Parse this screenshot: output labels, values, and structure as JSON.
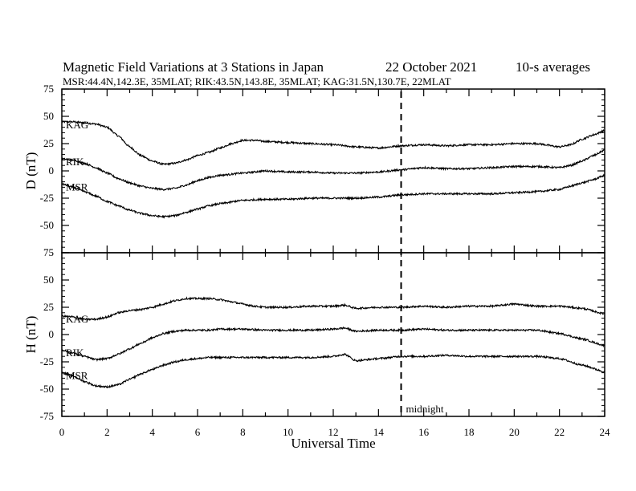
{
  "header": {
    "title": "Magnetic Field Variations at 3 Stations in Japan",
    "date": "22 October 2021",
    "averaging": "10-s averages",
    "stations_line": "MSR:44.4N,142.3E, 35MLAT;  RIK:43.5N,143.8E, 35MLAT;  KAG:31.5N,130.7E, 22MLAT"
  },
  "x_axis": {
    "label": "Universal Time",
    "range": [
      0,
      24
    ],
    "ticks": [
      "0",
      "2",
      "4",
      "6",
      "8",
      "10",
      "12",
      "14",
      "16",
      "18",
      "20",
      "22",
      "24"
    ]
  },
  "midnight_marker": {
    "x": 15,
    "label": "midnight"
  },
  "chart_data": [
    {
      "type": "line",
      "ylabel": "D (nT)",
      "ylim": [
        -75,
        75
      ],
      "yticks": [
        "75",
        "50",
        "25",
        "0",
        "-25",
        "-50",
        "-75"
      ],
      "grid": false,
      "series": [
        {
          "name": "KAG",
          "x": [
            0,
            0.5,
            1,
            1.5,
            2,
            2.5,
            3,
            3.5,
            4,
            4.5,
            5,
            5.5,
            6,
            6.5,
            7,
            7.5,
            8,
            8.5,
            9,
            10,
            11,
            12,
            13,
            14,
            15,
            16,
            17,
            18,
            19,
            20,
            21,
            22,
            22.5,
            23,
            23.5,
            24
          ],
          "y": [
            45,
            45,
            44,
            43,
            40,
            32,
            22,
            14,
            9,
            6,
            7,
            10,
            14,
            17,
            21,
            25,
            28,
            28,
            27,
            26,
            25,
            24,
            22,
            21,
            23,
            24,
            23,
            24,
            24,
            25,
            25,
            22,
            24,
            29,
            33,
            37
          ]
        },
        {
          "name": "RIK",
          "x": [
            0,
            0.5,
            1,
            1.5,
            2,
            2.5,
            3,
            3.5,
            4,
            4.5,
            5,
            5.5,
            6,
            6.5,
            7,
            8,
            9,
            10,
            11,
            12,
            13,
            14,
            15,
            16,
            17,
            18,
            19,
            20,
            21,
            22,
            22.5,
            23,
            23.5,
            24
          ],
          "y": [
            11,
            10,
            7,
            3,
            -2,
            -7,
            -11,
            -14,
            -16,
            -17,
            -16,
            -13,
            -9,
            -6,
            -4,
            -2,
            0,
            -1,
            -1,
            -2,
            -2,
            -1,
            1,
            3,
            2,
            2,
            3,
            4,
            4,
            3,
            5,
            9,
            14,
            19
          ]
        },
        {
          "name": "MSR",
          "x": [
            0,
            0.5,
            1,
            1.5,
            2,
            2.5,
            3,
            3.5,
            4,
            4.5,
            5,
            5.5,
            6,
            6.5,
            7,
            8,
            9,
            10,
            11,
            12,
            13,
            14,
            15,
            16,
            17,
            18,
            19,
            20,
            21,
            22,
            22.5,
            23,
            23.5,
            24
          ],
          "y": [
            -12,
            -15,
            -19,
            -23,
            -28,
            -32,
            -36,
            -39,
            -41,
            -42,
            -41,
            -38,
            -35,
            -32,
            -30,
            -27,
            -26,
            -26,
            -25,
            -25,
            -25,
            -24,
            -22,
            -21,
            -21,
            -21,
            -21,
            -20,
            -19,
            -17,
            -14,
            -11,
            -8,
            -4
          ]
        }
      ]
    },
    {
      "type": "line",
      "ylabel": "H (nT)",
      "ylim": [
        -75,
        75
      ],
      "yticks": [
        "75",
        "50",
        "25",
        "0",
        "-25",
        "-50",
        "-75"
      ],
      "grid": false,
      "series": [
        {
          "name": "KAG",
          "x": [
            0,
            0.5,
            1,
            1.5,
            2,
            2.5,
            3,
            3.5,
            4,
            4.5,
            5,
            5.5,
            6,
            6.5,
            7,
            7.5,
            8,
            8.5,
            9,
            10,
            11,
            12,
            12.5,
            13,
            14,
            15,
            16,
            17,
            18,
            19,
            20,
            21,
            22,
            23,
            24
          ],
          "y": [
            17,
            16,
            14,
            14,
            16,
            20,
            22,
            23,
            25,
            28,
            31,
            33,
            33,
            33,
            32,
            30,
            28,
            26,
            25,
            25,
            26,
            26,
            27,
            24,
            25,
            25,
            26,
            25,
            26,
            26,
            28,
            26,
            26,
            24,
            19
          ]
        },
        {
          "name": "RIK",
          "x": [
            0,
            0.5,
            1,
            1.5,
            2,
            2.5,
            3,
            3.5,
            4,
            4.5,
            5,
            5.5,
            6,
            6.5,
            7,
            8,
            9,
            10,
            11,
            12,
            12.5,
            13,
            14,
            15,
            16,
            17,
            18,
            19,
            20,
            21,
            22,
            23,
            24
          ],
          "y": [
            -14,
            -17,
            -20,
            -23,
            -22,
            -18,
            -13,
            -8,
            -3,
            1,
            3,
            4,
            4,
            4,
            5,
            5,
            4,
            4,
            4,
            5,
            6,
            3,
            4,
            4,
            5,
            4,
            4,
            4,
            4,
            4,
            1,
            -4,
            -10
          ]
        },
        {
          "name": "MSR",
          "x": [
            0,
            0.5,
            1,
            1.5,
            2,
            2.5,
            3,
            3.5,
            4,
            4.5,
            5,
            5.5,
            6,
            6.5,
            7,
            8,
            9,
            10,
            11,
            12,
            12.5,
            13,
            14,
            15,
            16,
            17,
            18,
            19,
            20,
            21,
            22,
            23,
            24
          ],
          "y": [
            -35,
            -38,
            -43,
            -47,
            -48,
            -46,
            -41,
            -36,
            -32,
            -28,
            -25,
            -23,
            -22,
            -21,
            -21,
            -21,
            -21,
            -21,
            -21,
            -20,
            -18,
            -24,
            -22,
            -20,
            -20,
            -19,
            -20,
            -20,
            -20,
            -20,
            -22,
            -28,
            -34
          ]
        }
      ]
    }
  ]
}
